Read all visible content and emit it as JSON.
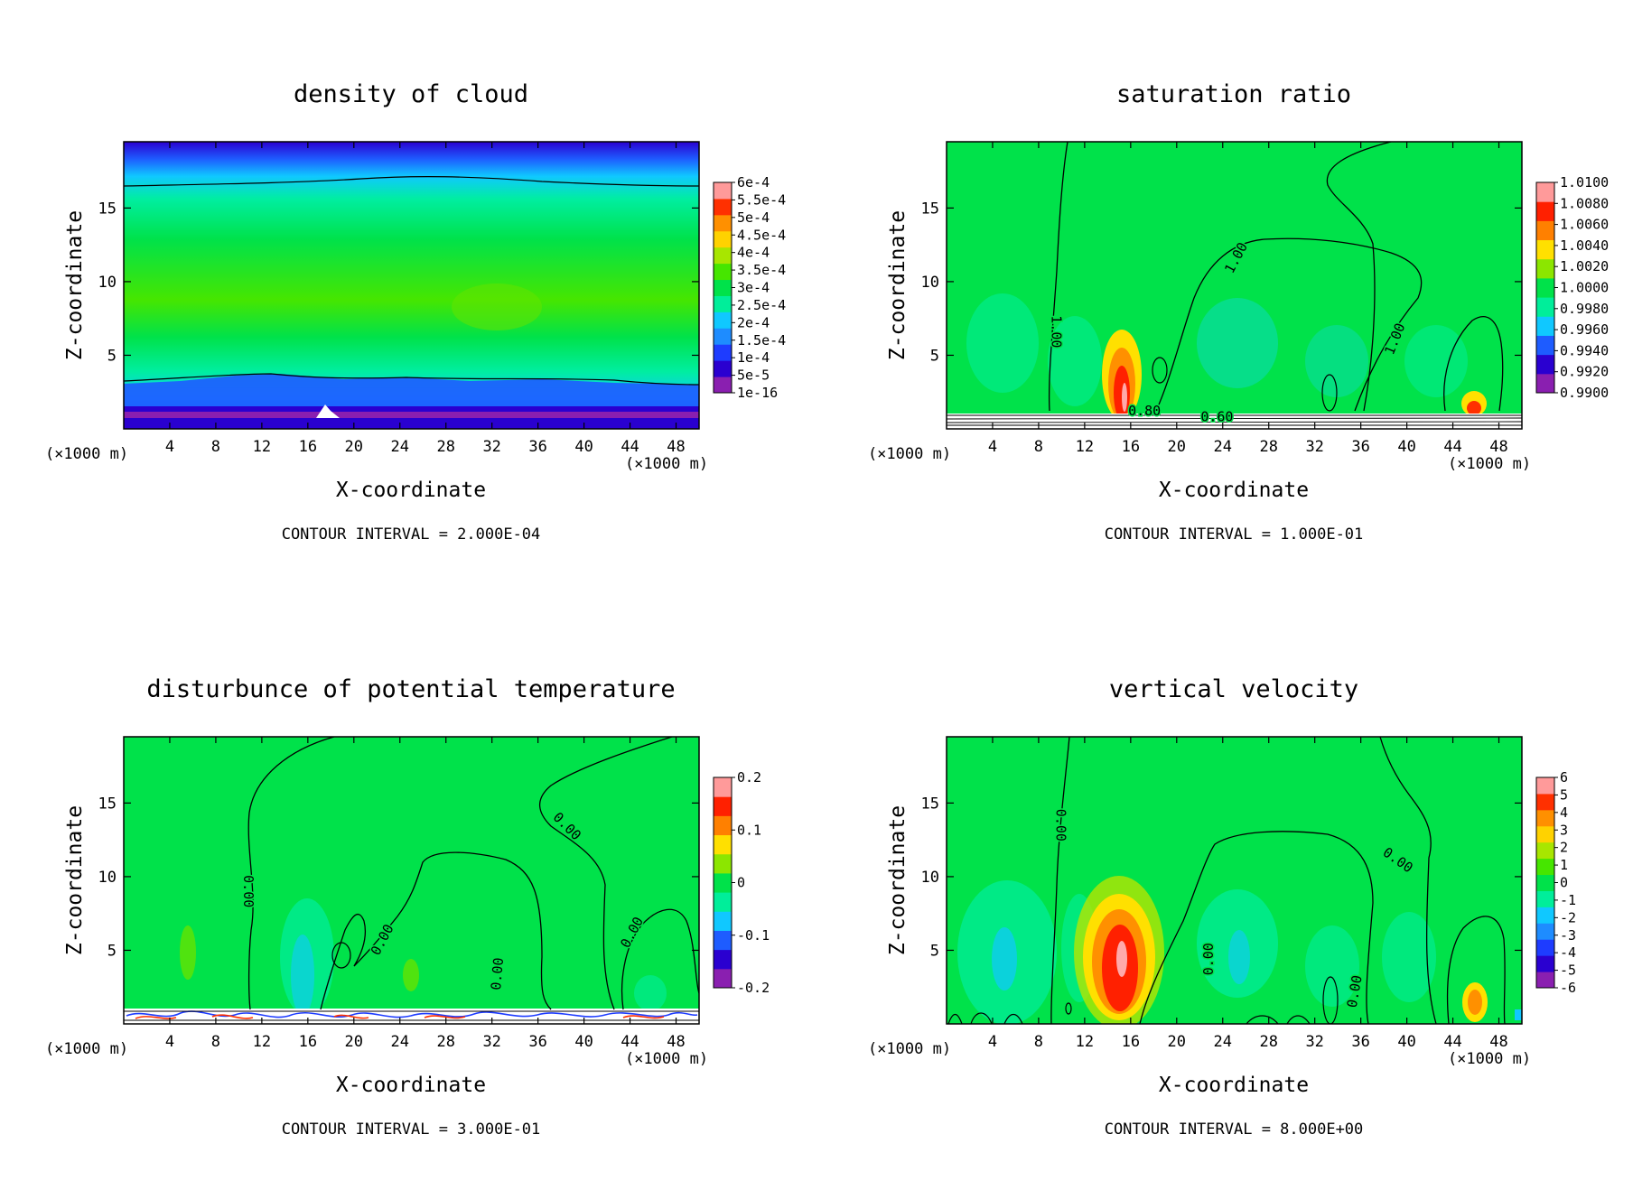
{
  "chart_data": [
    {
      "type": "heatmap",
      "title": "density of cloud",
      "xlabel": "X-coordinate",
      "ylabel": "Z-coordinate",
      "x_unit": "(×1000 m)",
      "y_unit": "(×1000 m)",
      "xlim": [
        0,
        50
      ],
      "ylim": [
        0,
        19.5
      ],
      "x_ticks": [
        4,
        8,
        12,
        16,
        20,
        24,
        28,
        32,
        36,
        40,
        44,
        48
      ],
      "y_ticks": [
        5,
        10,
        15
      ],
      "contour_interval": "CONTOUR INTERVAL = 2.000E-04",
      "colorbar": {
        "labels": [
          "1e-16",
          "5e-5",
          "1e-4",
          "1.5e-4",
          "2e-4",
          "2.5e-4",
          "3e-4",
          "3.5e-4",
          "4e-4",
          "4.5e-4",
          "5e-4",
          "5.5e-4",
          "6e-4"
        ],
        "colors": [
          "#8a1fb0",
          "#2a00d0",
          "#1e3cff",
          "#1e8cff",
          "#10c8ff",
          "#00ee9a",
          "#00e24a",
          "#46e600",
          "#a8e600",
          "#ffd200",
          "#ff9000",
          "#ff3000",
          "#ff9a9a"
        ]
      },
      "contour_labels": []
    },
    {
      "type": "heatmap",
      "title": "saturation ratio",
      "xlabel": "X-coordinate",
      "ylabel": "Z-coordinate",
      "x_unit": "(×1000 m)",
      "y_unit": "(×1000 m)",
      "xlim": [
        0,
        50
      ],
      "ylim": [
        0,
        19.5
      ],
      "x_ticks": [
        4,
        8,
        12,
        16,
        20,
        24,
        28,
        32,
        36,
        40,
        44,
        48
      ],
      "y_ticks": [
        5,
        10,
        15
      ],
      "contour_interval": "CONTOUR INTERVAL = 1.000E-01",
      "colorbar": {
        "labels": [
          "0.9900",
          "0.9920",
          "0.9940",
          "0.9960",
          "0.9980",
          "1.0000",
          "1.0020",
          "1.0040",
          "1.0060",
          "1.0080",
          "1.0100"
        ],
        "colors": [
          "#8a1fb0",
          "#2a00d0",
          "#1e5cff",
          "#10c8ff",
          "#00ee9a",
          "#00e24a",
          "#8ce600",
          "#ffe000",
          "#ff8000",
          "#ff2000",
          "#ff9a9a"
        ]
      },
      "contour_labels": [
        {
          "text": "1.00",
          "x": 9.5,
          "y": 6.6,
          "rot": 90
        },
        {
          "text": "1.00",
          "x": 25.2,
          "y": 11.6,
          "rot": -62
        },
        {
          "text": "1.00",
          "x": 39,
          "y": 6.1,
          "rot": -68
        },
        {
          "text": "0.80",
          "x": 17.2,
          "y": 1.2,
          "rot": 0
        },
        {
          "text": "0.60",
          "x": 23.5,
          "y": 0.8,
          "rot": 0
        }
      ]
    },
    {
      "type": "heatmap",
      "title": "disturbunce of potential temperature",
      "xlabel": "X-coordinate",
      "ylabel": "Z-coordinate",
      "x_unit": "(×1000 m)",
      "y_unit": "(×1000 m)",
      "xlim": [
        0,
        50
      ],
      "ylim": [
        0,
        19.5
      ],
      "x_ticks": [
        4,
        8,
        12,
        16,
        20,
        24,
        28,
        32,
        36,
        40,
        44,
        48
      ],
      "y_ticks": [
        5,
        10,
        15
      ],
      "contour_interval": "CONTOUR INTERVAL = 3.000E-01",
      "colorbar": {
        "labels": [
          "-0.2",
          "-0.1",
          "0",
          "0.1",
          "0.2"
        ],
        "colors": [
          "#8a1fb0",
          "#2a00d0",
          "#1e5cff",
          "#10c8ff",
          "#00ee9a",
          "#00e24a",
          "#8ce600",
          "#ffe000",
          "#ff8000",
          "#ff2000",
          "#ff9a9a"
        ]
      },
      "contour_labels": [
        {
          "text": "0.00",
          "x": 10.8,
          "y": 9.0,
          "rot": 90
        },
        {
          "text": "0.00",
          "x": 22.5,
          "y": 5.7,
          "rot": -62
        },
        {
          "text": "0.00",
          "x": 32.5,
          "y": 3.4,
          "rot": -85
        },
        {
          "text": "0.00",
          "x": 38.5,
          "y": 13.4,
          "rot": 45
        },
        {
          "text": "0.00",
          "x": 44.2,
          "y": 6.2,
          "rot": -62
        }
      ]
    },
    {
      "type": "heatmap",
      "title": "vertical velocity",
      "xlabel": "X-coordinate",
      "ylabel": "Z-coordinate",
      "x_unit": "(×1000 m)",
      "y_unit": "(×1000 m)",
      "xlim": [
        0,
        50
      ],
      "ylim": [
        0,
        19.5
      ],
      "x_ticks": [
        4,
        8,
        12,
        16,
        20,
        24,
        28,
        32,
        36,
        40,
        44,
        48
      ],
      "y_ticks": [
        5,
        10,
        15
      ],
      "contour_interval": "CONTOUR INTERVAL = 8.000E+00",
      "colorbar": {
        "labels": [
          "-6",
          "-5",
          "-4",
          "-3",
          "-2",
          "-1",
          "0",
          "1",
          "2",
          "3",
          "4",
          "5",
          "6"
        ],
        "colors": [
          "#8a1fb0",
          "#2a00d0",
          "#1e3cff",
          "#1e8cff",
          "#10c8ff",
          "#00ee9a",
          "#00e24a",
          "#46e600",
          "#a8e600",
          "#ffd200",
          "#ff9000",
          "#ff3000",
          "#ff9a9a"
        ]
      },
      "contour_labels": [
        {
          "text": "0.00",
          "x": 9.9,
          "y": 13.5,
          "rot": 90
        },
        {
          "text": "0.00",
          "x": 39.2,
          "y": 11.1,
          "rot": 35
        },
        {
          "text": "0.00",
          "x": 22.8,
          "y": 4.4,
          "rot": -90
        },
        {
          "text": "0.00",
          "x": 35.5,
          "y": 2.2,
          "rot": -80
        }
      ]
    }
  ]
}
